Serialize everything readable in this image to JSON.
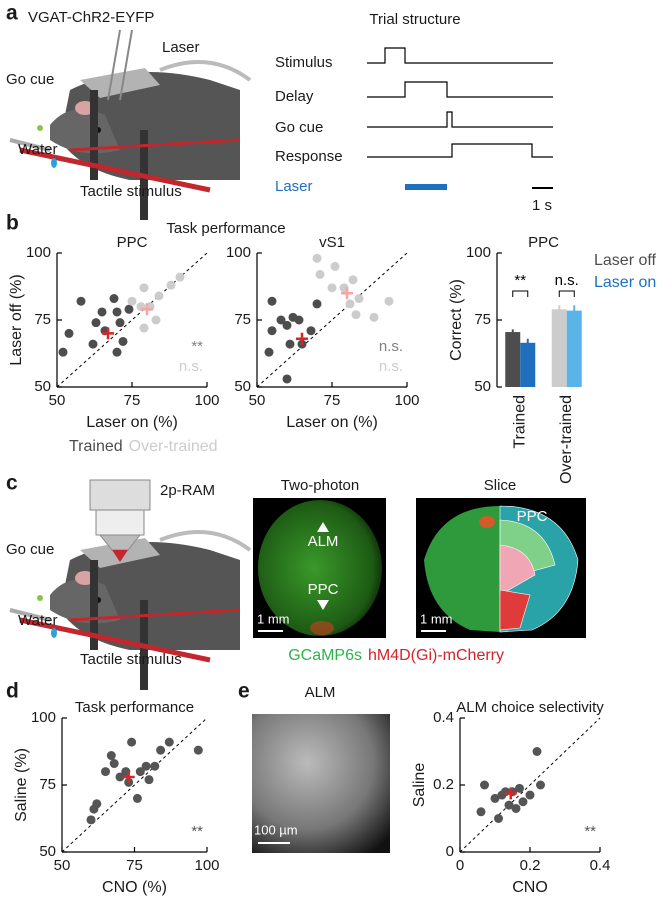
{
  "panel_labels": [
    "a",
    "b",
    "c",
    "d",
    "e"
  ],
  "panel_a": {
    "mouse_label": "VGAT-ChR2-EYFP",
    "laser": "Laser",
    "go_cue": "Go cue",
    "water": "Water",
    "tactile": "Tactile stimulus",
    "trial_title": "Trial structure",
    "rows": [
      "Stimulus",
      "Delay",
      "Go cue",
      "Response"
    ],
    "laser_row": "Laser",
    "scale": "1 s"
  },
  "panel_b": {
    "title": "Task performance"
  },
  "panel_c": {
    "microscope": "2p-RAM",
    "go_cue": "Go cue",
    "water": "Water",
    "tactile": "Tactile stimulus",
    "two_photon": {
      "title": "Two-photon",
      "alm": "ALM",
      "ppc": "PPC",
      "scale": "1 mm"
    },
    "slice": {
      "title": "Slice",
      "ppc": "PPC",
      "scale": "1 mm"
    },
    "legend": [
      "GCaMP6s",
      "hM4D(Gi)-mCherry"
    ]
  },
  "panel_e": {
    "image_title": "ALM",
    "scale": "100 µm"
  },
  "chart_data": [
    {
      "type": "scatter",
      "title": "PPC",
      "xlabel": "Laser on (%)",
      "ylabel": "Laser off (%)",
      "xlim": [
        50,
        100
      ],
      "ylim": [
        50,
        100
      ],
      "xticks": [
        50,
        75,
        100
      ],
      "yticks": [
        50,
        75,
        100
      ],
      "legend": "bottom",
      "series": [
        {
          "name": "Trained",
          "color": "#4d4d4d",
          "x": [
            52,
            54,
            58,
            62,
            63,
            66,
            69,
            70,
            71,
            72,
            70,
            74,
            65
          ],
          "values": [
            63,
            70,
            82,
            66,
            74,
            71,
            83,
            78,
            74,
            67,
            63,
            79,
            78
          ]
        },
        {
          "name": "Over-trained",
          "color": "#cccccc",
          "x": [
            75,
            78,
            79,
            79,
            81,
            83,
            84,
            88,
            91
          ],
          "values": [
            82,
            80,
            72,
            87,
            80,
            75,
            84,
            88,
            91
          ]
        },
        {
          "color": "#d62728",
          "marker": "cross",
          "x": [
            67
          ],
          "values": [
            70
          ]
        },
        {
          "color": "#f4a6a6",
          "marker": "cross",
          "x": [
            80
          ],
          "values": [
            79
          ]
        }
      ],
      "annotations": [
        {
          "text": "**",
          "color": "#808080"
        },
        {
          "text": "n.s.",
          "color": "#cccccc"
        }
      ]
    },
    {
      "type": "scatter",
      "title": "vS1",
      "xlabel": "Laser on (%)",
      "xlim": [
        50,
        100
      ],
      "ylim": [
        50,
        100
      ],
      "xticks": [
        50,
        75,
        100
      ],
      "yticks": [
        50,
        75,
        100
      ],
      "series": [
        {
          "name": "Trained",
          "color": "#4d4d4d",
          "x": [
            54,
            55,
            58,
            60,
            61,
            62,
            64,
            65,
            60,
            55,
            68,
            70
          ],
          "values": [
            63,
            71,
            75,
            73,
            66,
            76,
            75,
            66,
            53,
            82,
            71,
            81
          ]
        },
        {
          "name": "Over-trained",
          "color": "#cccccc",
          "x": [
            70,
            71,
            76,
            75,
            79,
            82,
            81,
            84,
            83,
            89,
            94
          ],
          "values": [
            98,
            92,
            95,
            87,
            87,
            90,
            81,
            83,
            77,
            76,
            82
          ]
        },
        {
          "color": "#d62728",
          "marker": "cross",
          "x": [
            65
          ],
          "values": [
            68
          ]
        },
        {
          "color": "#f4a6a6",
          "marker": "cross",
          "x": [
            80
          ],
          "values": [
            85
          ]
        }
      ],
      "annotations": [
        {
          "text": "n.s.",
          "color": "#808080"
        },
        {
          "text": "n.s.",
          "color": "#cccccc"
        }
      ]
    },
    {
      "type": "bar",
      "title": "PPC",
      "ylabel": "Correct (%)",
      "ylim": [
        50,
        100
      ],
      "yticks": [
        50,
        75,
        100
      ],
      "legend": "right",
      "categories": [
        "Trained",
        "Over-trained"
      ],
      "series": [
        {
          "name": "Laser off",
          "colors": [
            "#4d4d4d",
            "#cccccc"
          ],
          "values": [
            70.5,
            79
          ],
          "errors": [
            1,
            1.5
          ]
        },
        {
          "name": "Laser on",
          "colors": [
            "#1f6fbf",
            "#5ab4e8"
          ],
          "values": [
            66.5,
            78.5
          ],
          "errors": [
            1.5,
            2
          ]
        }
      ],
      "annotations": [
        {
          "text": "**",
          "color": "#000000"
        },
        {
          "text": "n.s.",
          "color": "#000000"
        }
      ]
    },
    {
      "type": "scatter",
      "title": "Task performance",
      "xlabel": "CNO (%)",
      "ylabel": "Saline (%)",
      "xlim": [
        50,
        100
      ],
      "ylim": [
        50,
        100
      ],
      "xticks": [
        50,
        75,
        100
      ],
      "yticks": [
        50,
        75,
        100
      ],
      "series": [
        {
          "color": "#555555",
          "x": [
            60,
            61,
            62,
            65,
            67,
            68,
            70,
            72,
            73,
            74,
            76,
            77,
            79,
            80,
            82,
            84,
            87,
            97
          ],
          "values": [
            62,
            66,
            68,
            80,
            86,
            83,
            78,
            80,
            76,
            91,
            70,
            80,
            82,
            77,
            82,
            88,
            91,
            88
          ]
        },
        {
          "color": "#d62728",
          "marker": "cross",
          "x": [
            73
          ],
          "values": [
            78
          ]
        }
      ],
      "annotations": [
        {
          "text": "**",
          "color": "#555555"
        }
      ]
    },
    {
      "type": "scatter",
      "title": "ALM choice selectivity",
      "xlabel": "CNO",
      "ylabel": "Saline",
      "xlim": [
        0,
        0.4
      ],
      "ylim": [
        0,
        0.4
      ],
      "xticks": [
        0,
        0.2,
        0.4
      ],
      "yticks": [
        0,
        0.2,
        0.4
      ],
      "series": [
        {
          "color": "#555555",
          "x": [
            0.06,
            0.07,
            0.1,
            0.11,
            0.12,
            0.13,
            0.14,
            0.15,
            0.16,
            0.17,
            0.18,
            0.2,
            0.22,
            0.23
          ],
          "values": [
            0.12,
            0.2,
            0.16,
            0.1,
            0.17,
            0.18,
            0.14,
            0.18,
            0.13,
            0.19,
            0.15,
            0.17,
            0.3,
            0.2
          ]
        },
        {
          "color": "#d62728",
          "marker": "cross",
          "x": [
            0.145
          ],
          "values": [
            0.175
          ]
        }
      ],
      "annotations": [
        {
          "text": "**",
          "color": "#555555"
        }
      ]
    }
  ]
}
